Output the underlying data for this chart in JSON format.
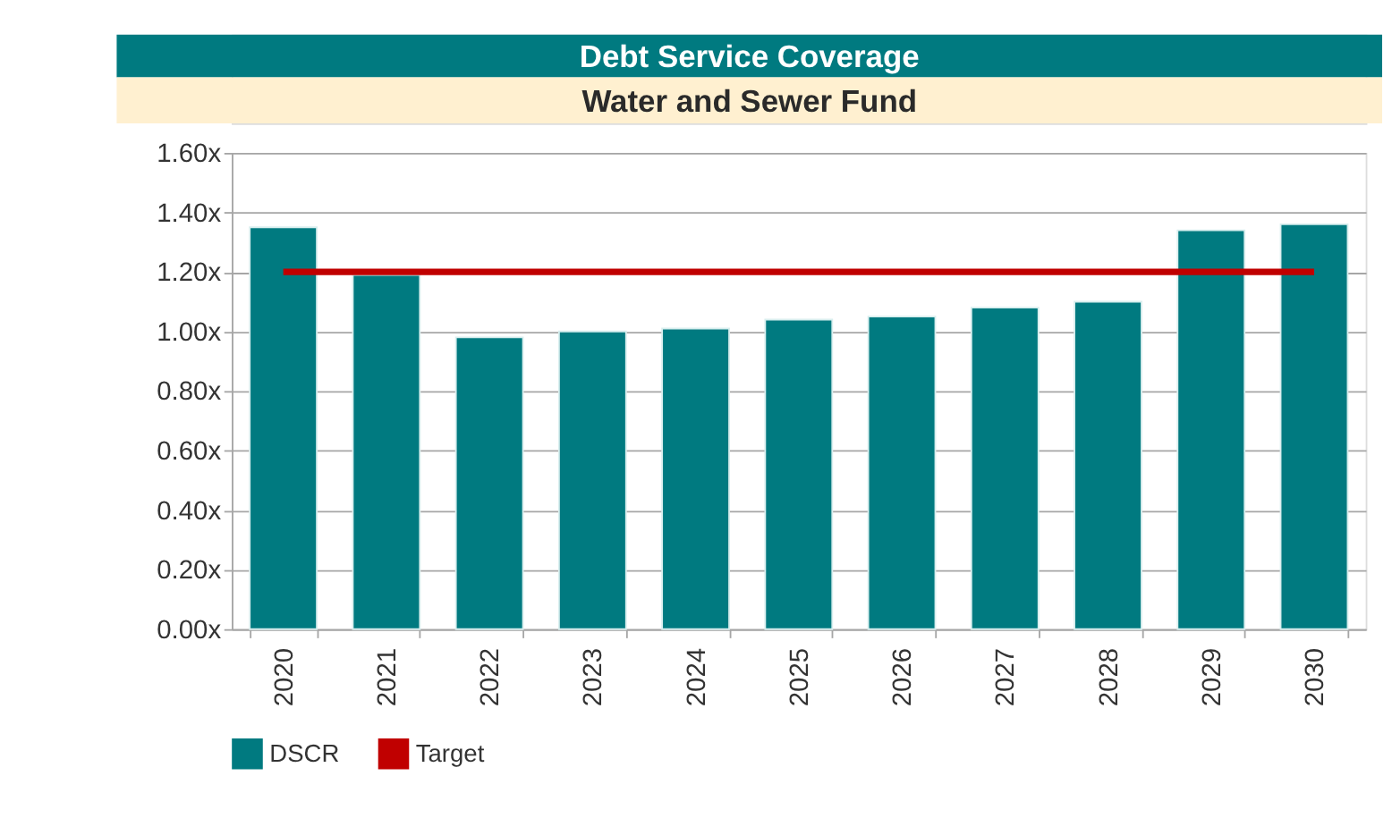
{
  "chart_data": {
    "type": "bar",
    "title": "Debt Service Coverage",
    "subtitle": "Water and Sewer Fund",
    "categories": [
      "2020",
      "2021",
      "2022",
      "2023",
      "2024",
      "2025",
      "2026",
      "2027",
      "2028",
      "2029",
      "2030"
    ],
    "series": [
      {
        "name": "DSCR",
        "color": "#007a80",
        "values": [
          1.35,
          1.19,
          0.98,
          1.0,
          1.01,
          1.04,
          1.05,
          1.08,
          1.1,
          1.34,
          1.36
        ]
      },
      {
        "name": "Target",
        "type": "line",
        "color": "#c00000",
        "values": [
          1.2,
          1.2,
          1.2,
          1.2,
          1.2,
          1.2,
          1.2,
          1.2,
          1.2,
          1.2,
          1.2
        ]
      }
    ],
    "ylim": [
      0,
      1.6
    ],
    "yticks": [
      {
        "value": 0,
        "label": "0.00x"
      },
      {
        "value": 0.2,
        "label": "0.20x"
      },
      {
        "value": 0.4,
        "label": "0.40x"
      },
      {
        "value": 0.6,
        "label": "0.60x"
      },
      {
        "value": 0.8,
        "label": "0.80x"
      },
      {
        "value": 1.0,
        "label": "1.00x"
      },
      {
        "value": 1.2,
        "label": "1.20x"
      },
      {
        "value": 1.4,
        "label": "1.40x"
      },
      {
        "value": 1.6,
        "label": "1.60x"
      }
    ],
    "grid": "y",
    "legend": "bottom"
  }
}
